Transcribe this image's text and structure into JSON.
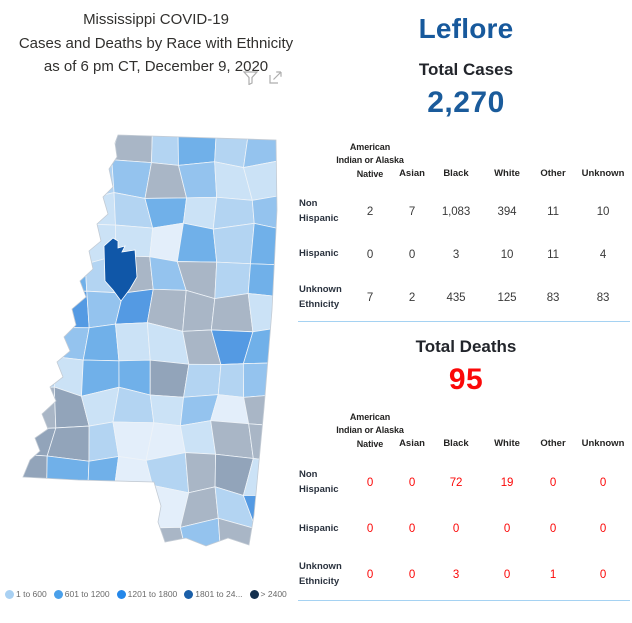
{
  "report_title": {
    "line1": "Mississippi COVID-19",
    "line2": "Cases and Deaths by Race with Ethnicity",
    "line3": "as of 6 pm CT, December 9, 2020"
  },
  "selected_county": "Leflore",
  "cases": {
    "label": "Total Cases",
    "total": "2,270"
  },
  "deaths": {
    "label": "Total Deaths",
    "total": "95"
  },
  "columns": {
    "c1": "American Indian or Alaska Native",
    "c2": "Asian",
    "c3": "Black",
    "c4": "White",
    "c5": "Other",
    "c6": "Unknown"
  },
  "row_labels": {
    "r1": "Non Hispanic",
    "r2": "Hispanic",
    "r3": "Unknown Ethnicity"
  },
  "cases_table": {
    "rows": [
      [
        "2",
        "7",
        "1,083",
        "394",
        "11",
        "10"
      ],
      [
        "0",
        "0",
        "3",
        "10",
        "11",
        "4"
      ],
      [
        "7",
        "2",
        "435",
        "125",
        "83",
        "83"
      ]
    ]
  },
  "deaths_table": {
    "rows": [
      [
        "0",
        "0",
        "72",
        "19",
        "0",
        "0"
      ],
      [
        "0",
        "0",
        "0",
        "0",
        "0",
        "0"
      ],
      [
        "0",
        "0",
        "3",
        "0",
        "1",
        "0"
      ]
    ]
  },
  "legend": {
    "items": [
      {
        "label": "1 to 600",
        "color": "#a9d1f3"
      },
      {
        "label": "601 to 1200",
        "color": "#4aa0ea"
      },
      {
        "label": "1201 to 1800",
        "color": "#2487e9"
      },
      {
        "label": "1801 to 24...",
        "color": "#1b5fa8"
      },
      {
        "label": "> 2400",
        "color": "#14304e"
      }
    ]
  },
  "map": {
    "selected_color": "#1057a8",
    "palette": [
      "#a9b6c6",
      "#92a4ba",
      "#cbe2f6",
      "#b3d4f2",
      "#94c3ee",
      "#70b0e9",
      "#e3eefa",
      "#549ae3"
    ]
  },
  "colors": {
    "county_accent": "#17599c",
    "cases_value": "#1a5b9b",
    "deaths_value": "#fb0808",
    "divider": "#a5d2f2"
  },
  "icons": {
    "filter": "filter-funnel-icon",
    "focus": "focus-mode-icon"
  }
}
